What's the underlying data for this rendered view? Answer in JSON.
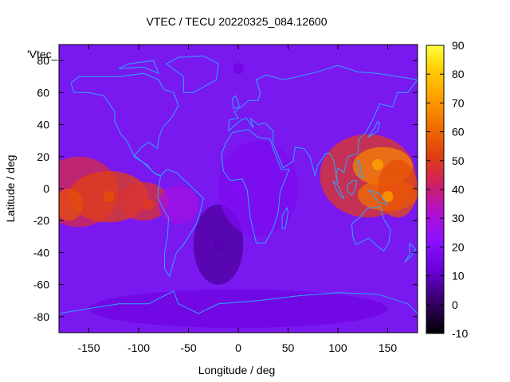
{
  "chart_data": {
    "type": "heatmap",
    "title": "VTEC / TECU 20220325_084.12600",
    "xlabel": "Longitude / deg",
    "ylabel": "Latitude / deg",
    "series_label": "'Vtec_",
    "xlim": [
      -180,
      180
    ],
    "ylim": [
      -90,
      90
    ],
    "x_ticks": [
      -150,
      -100,
      -50,
      0,
      50,
      100,
      150
    ],
    "y_ticks": [
      -80,
      -60,
      -40,
      -20,
      0,
      20,
      40,
      60,
      80
    ],
    "colorbar": {
      "range": [
        -10,
        90
      ],
      "ticks": [
        90,
        80,
        70,
        60,
        50,
        40,
        30,
        20,
        10,
        0,
        -10
      ],
      "palette": [
        "#000000",
        "#4a0080",
        "#7a00ff",
        "#c000c0",
        "#e03030",
        "#ff8000",
        "#ffd000",
        "#ffff40"
      ]
    },
    "coastline_color": "#2aa8ff",
    "features": [
      {
        "lon": -130,
        "lat": -5,
        "value": 55
      },
      {
        "lon": -90,
        "lat": -10,
        "value": 50
      },
      {
        "lon": 140,
        "lat": 15,
        "value": 72
      },
      {
        "lon": 150,
        "lat": -5,
        "value": 70
      },
      {
        "lon": -20,
        "lat": -35,
        "value": 8
      },
      {
        "lon": 0,
        "lat": 0,
        "value": 20
      },
      {
        "lon": 0,
        "lat": 75,
        "value": 15
      }
    ]
  }
}
